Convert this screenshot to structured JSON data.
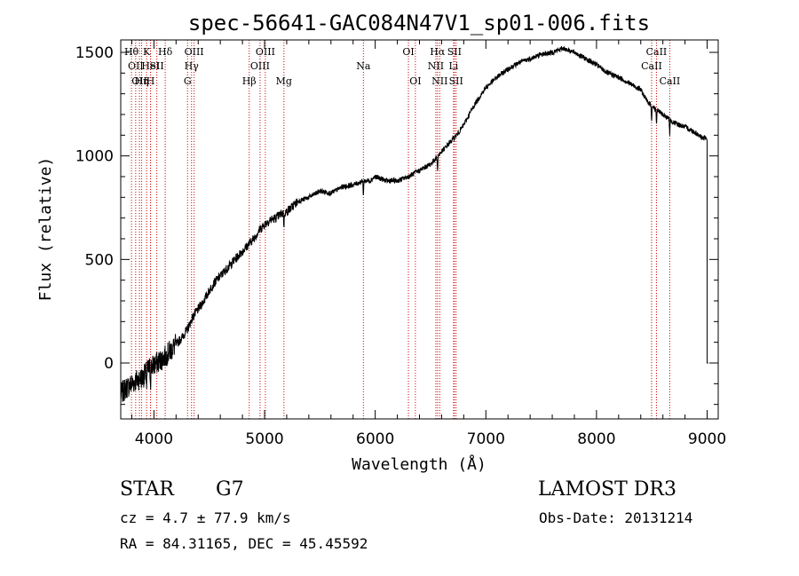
{
  "chart_data": {
    "type": "line",
    "title": "spec-56641-GAC084N47V1_sp01-006.fits",
    "xlabel": "Wavelength (Å)",
    "ylabel": "Flux (relative)",
    "xlim": [
      3700,
      9100
    ],
    "ylim": [
      -270,
      1560
    ],
    "xticks": [
      4000,
      5000,
      6000,
      7000,
      8000,
      9000
    ],
    "yticks": [
      0,
      500,
      1000,
      1500
    ],
    "grid": false,
    "line_color": "#000000",
    "marker_color": "#cc0000",
    "x": [
      3700,
      3750,
      3800,
      3850,
      3900,
      3950,
      4000,
      4050,
      4100,
      4150,
      4200,
      4250,
      4300,
      4350,
      4400,
      4450,
      4500,
      4550,
      4600,
      4650,
      4700,
      4750,
      4800,
      4850,
      4900,
      4950,
      5000,
      5050,
      5100,
      5150,
      5200,
      5300,
      5400,
      5500,
      5600,
      5700,
      5800,
      5900,
      5950,
      6000,
      6100,
      6200,
      6300,
      6400,
      6500,
      6550,
      6600,
      6650,
      6700,
      6750,
      6800,
      6900,
      7000,
      7100,
      7200,
      7300,
      7400,
      7500,
      7600,
      7700,
      7750,
      7800,
      7900,
      8000,
      8100,
      8200,
      8300,
      8400,
      8450,
      8500,
      8550,
      8600,
      8650,
      8700,
      8800,
      8900,
      8950,
      9000
    ],
    "y": [
      -150,
      -120,
      -100,
      -80,
      -70,
      -30,
      -10,
      10,
      30,
      60,
      90,
      120,
      160,
      220,
      260,
      300,
      350,
      390,
      420,
      450,
      480,
      510,
      540,
      570,
      600,
      640,
      670,
      690,
      700,
      720,
      730,
      780,
      800,
      830,
      820,
      850,
      860,
      880,
      880,
      900,
      880,
      880,
      900,
      930,
      960,
      990,
      1020,
      1050,
      1080,
      1110,
      1150,
      1250,
      1330,
      1380,
      1420,
      1450,
      1470,
      1490,
      1500,
      1520,
      1510,
      1500,
      1470,
      1440,
      1400,
      1380,
      1350,
      1320,
      1270,
      1240,
      1220,
      1200,
      1180,
      1160,
      1140,
      1110,
      1090,
      1080
    ],
    "lines": [
      {
        "w": 3797,
        "label": "Hθ",
        "row": 1
      },
      {
        "w": 3835,
        "label": "OII",
        "row": 2
      },
      {
        "w": 3869,
        "label": "OII",
        "row": 3
      },
      {
        "w": 3889,
        "label": "Hη",
        "row": 3
      },
      {
        "w": 3934,
        "label": "K",
        "row": 1
      },
      {
        "w": 3969,
        "label": "H",
        "row": 3
      },
      {
        "w": 3970,
        "label": "HeI",
        "row": 2
      },
      {
        "w": 4026,
        "label": "SII",
        "row": 2
      },
      {
        "w": 4102,
        "label": "Hδ",
        "row": 1
      },
      {
        "w": 4304,
        "label": "G",
        "row": 3
      },
      {
        "w": 4340,
        "label": "Hγ",
        "row": 2
      },
      {
        "w": 4363,
        "label": "OIII",
        "row": 1
      },
      {
        "w": 4861,
        "label": "Hβ",
        "row": 3
      },
      {
        "w": 4959,
        "label": "OIII",
        "row": 2
      },
      {
        "w": 5007,
        "label": "OIII",
        "row": 1
      },
      {
        "w": 5175,
        "label": "Mg",
        "row": 3
      },
      {
        "w": 5893,
        "label": "Na",
        "row": 2
      },
      {
        "w": 6300,
        "label": "OI",
        "row": 1
      },
      {
        "w": 6363,
        "label": "OI",
        "row": 3
      },
      {
        "w": 6548,
        "label": "NII",
        "row": 2
      },
      {
        "w": 6563,
        "label": "Hα",
        "row": 1
      },
      {
        "w": 6583,
        "label": "NII",
        "row": 3
      },
      {
        "w": 6708,
        "label": "Li",
        "row": 2
      },
      {
        "w": 6716,
        "label": "SII",
        "row": 1
      },
      {
        "w": 6731,
        "label": "SII",
        "row": 3
      },
      {
        "w": 8498,
        "label": "CaII",
        "row": 2
      },
      {
        "w": 8542,
        "label": "CaII",
        "row": 1
      },
      {
        "w": 8662,
        "label": "CaII",
        "row": 3
      }
    ]
  },
  "info": {
    "class": "STAR",
    "subclass": "G7",
    "survey": "LAMOST DR3",
    "redshift": "cz = 4.7 ± 77.9 km/s",
    "obs_date": "Obs-Date: 20131214",
    "coords": "RA =  84.31165, DEC =  45.45592"
  }
}
